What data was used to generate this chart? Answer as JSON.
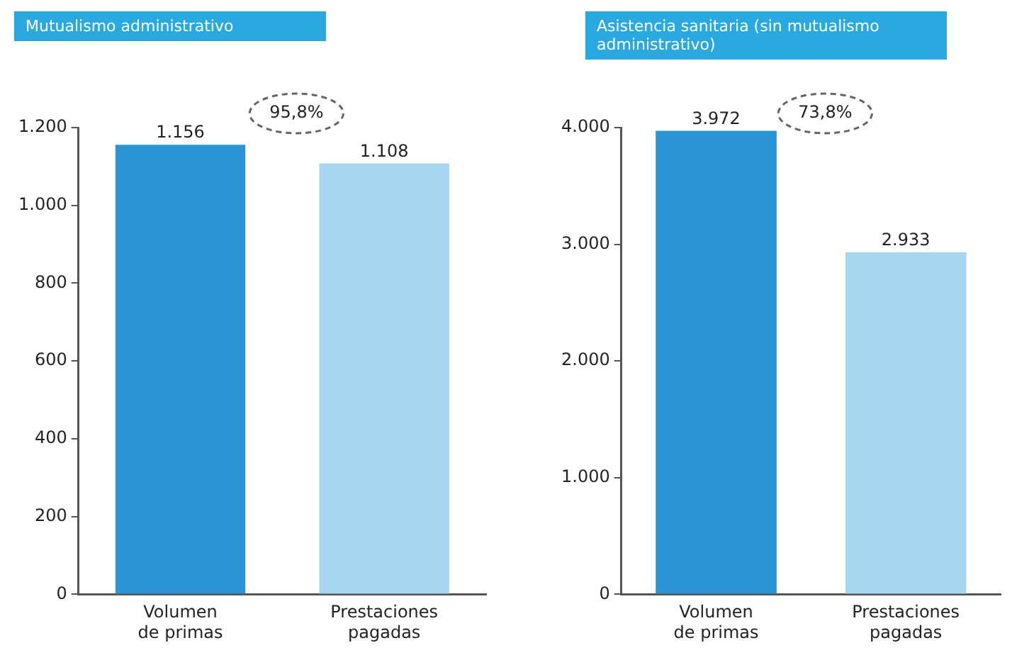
{
  "chart_data": [
    {
      "type": "bar",
      "title": "Mutualismo administrativo",
      "categories": [
        "Volumen de primas",
        "Prestaciones pagadas"
      ],
      "values": [
        1156,
        1108
      ],
      "colors": [
        "#2a94d4",
        "#a6d6f0"
      ],
      "value_labels": [
        "1.156",
        "1.108"
      ],
      "ylim": [
        0,
        1200
      ],
      "yticks": [
        0,
        200,
        400,
        600,
        800,
        {
          "value": 1000,
          "label": "1.000"
        },
        {
          "value": 1200,
          "label": "1.200"
        }
      ],
      "annotations": [
        "95,8%"
      ],
      "grid": false,
      "legend": false
    },
    {
      "type": "bar",
      "title": "Asistencia sanitaria (sin mutualismo administrativo)",
      "categories": [
        "Volumen de primas",
        "Prestaciones pagadas"
      ],
      "values": [
        3972,
        2933
      ],
      "colors": [
        "#2a94d4",
        "#a6d6f0"
      ],
      "value_labels": [
        "3.972",
        "2.933"
      ],
      "ylim": [
        0,
        4000
      ],
      "yticks": [
        0,
        {
          "value": 1000,
          "label": "1.000"
        },
        {
          "value": 2000,
          "label": "2.000"
        },
        {
          "value": 3000,
          "label": "3.000"
        },
        {
          "value": 4000,
          "label": "4.000"
        }
      ],
      "annotations": [
        "73,8%"
      ],
      "grid": false,
      "legend": false
    }
  ]
}
